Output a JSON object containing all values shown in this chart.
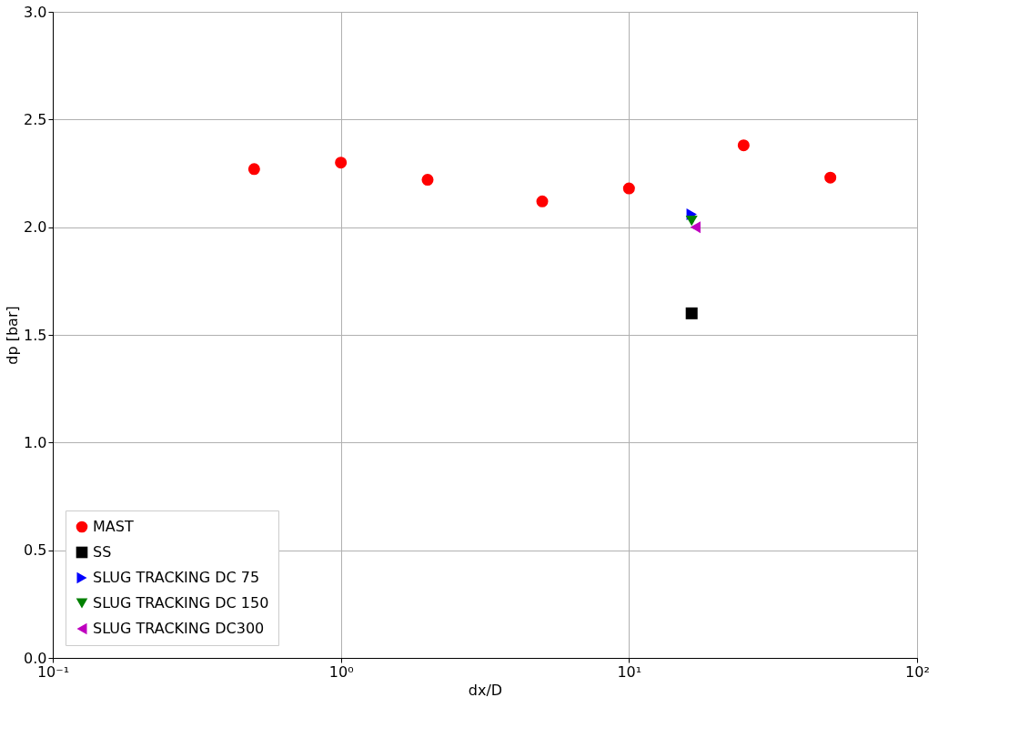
{
  "chart_data": {
    "type": "scatter",
    "xlabel": "dx/D",
    "ylabel": "dp [bar]",
    "log": "x",
    "xlim": [
      0.1,
      100
    ],
    "xticks": [
      {
        "value": 0.1,
        "label": "10⁻¹"
      },
      {
        "value": 1,
        "label": "10⁰"
      },
      {
        "value": 10,
        "label": "10¹"
      },
      {
        "value": 100,
        "label": "10²"
      }
    ],
    "ylim": [
      0,
      3
    ],
    "yticks": [
      {
        "value": 0,
        "label": "0.0"
      },
      0.5,
      {
        "value": 1,
        "label": "1.0"
      },
      1.5,
      {
        "value": 2,
        "label": "2.0"
      },
      2.5,
      {
        "value": 3,
        "label": "3.0"
      }
    ],
    "grid": true,
    "legend": "bottom left",
    "series": [
      {
        "name": "MAST",
        "color": "#ff0000",
        "marker": "circle",
        "x": [
          0.5,
          1,
          2,
          5,
          10,
          25,
          50
        ],
        "values": [
          2.27,
          2.3,
          2.22,
          2.12,
          2.18,
          2.38,
          2.23
        ]
      },
      {
        "name": "SS",
        "color": "#000000",
        "marker": "square",
        "x": [
          16.5
        ],
        "values": [
          1.6
        ]
      },
      {
        "name": "SLUG TRACKING DC 75",
        "color": "#0000ff",
        "marker": "triangle-right",
        "x": [
          16.5
        ],
        "values": [
          2.06
        ]
      },
      {
        "name": "SLUG TRACKING DC 150",
        "color": "#008000",
        "marker": "triangle-down",
        "x": [
          16.5
        ],
        "values": [
          2.03
        ]
      },
      {
        "name": "SLUG TRACKING DC300",
        "color": "#bf00bf",
        "marker": "triangle-left",
        "x": [
          17
        ],
        "values": [
          2.0
        ]
      }
    ]
  }
}
